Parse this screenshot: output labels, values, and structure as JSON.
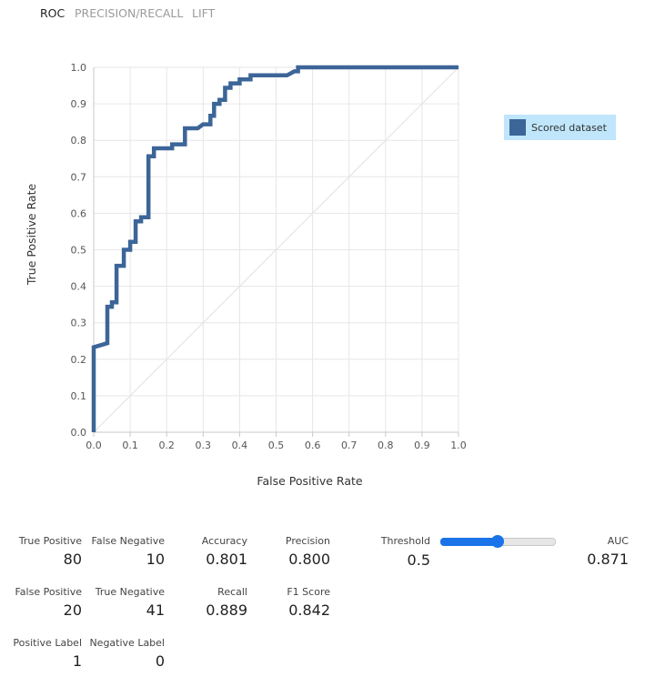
{
  "tabs": [
    {
      "label": "ROC",
      "active": true
    },
    {
      "label": "PRECISION/RECALL",
      "active": false
    },
    {
      "label": "LIFT",
      "active": false
    }
  ],
  "colors": {
    "series": "#3c6598",
    "legend_bg": "#bfe6fb",
    "grid": "#e6e6e6",
    "diagonal": "#e6e6e6",
    "slider": "#1a73e8"
  },
  "chart_data": {
    "type": "line",
    "xlabel": "False Positive Rate",
    "ylabel": "True Positive Rate",
    "xlim": [
      0,
      1
    ],
    "ylim": [
      0,
      1
    ],
    "xticks": [
      "0.0",
      "0.1",
      "0.2",
      "0.3",
      "0.4",
      "0.5",
      "0.6",
      "0.7",
      "0.8",
      "0.9",
      "1.0"
    ],
    "yticks": [
      "0.0",
      "0.1",
      "0.2",
      "0.3",
      "0.4",
      "0.5",
      "0.6",
      "0.7",
      "0.8",
      "0.9",
      "1.0"
    ],
    "grid": true,
    "legend_position": "right",
    "diagonal_reference": true,
    "series": [
      {
        "name": "Scored dataset",
        "color": "#3c6598",
        "points": [
          [
            0.0,
            0.0
          ],
          [
            0.0,
            0.233
          ],
          [
            0.0375,
            0.244
          ],
          [
            0.0375,
            0.344
          ],
          [
            0.05,
            0.344
          ],
          [
            0.05,
            0.356
          ],
          [
            0.0625,
            0.356
          ],
          [
            0.0625,
            0.456
          ],
          [
            0.0825,
            0.456
          ],
          [
            0.0825,
            0.5
          ],
          [
            0.1,
            0.5
          ],
          [
            0.1,
            0.522
          ],
          [
            0.115,
            0.522
          ],
          [
            0.115,
            0.578
          ],
          [
            0.13,
            0.578
          ],
          [
            0.13,
            0.589
          ],
          [
            0.15,
            0.589
          ],
          [
            0.15,
            0.756
          ],
          [
            0.165,
            0.756
          ],
          [
            0.165,
            0.778
          ],
          [
            0.215,
            0.778
          ],
          [
            0.215,
            0.789
          ],
          [
            0.25,
            0.789
          ],
          [
            0.25,
            0.833
          ],
          [
            0.285,
            0.833
          ],
          [
            0.3,
            0.844
          ],
          [
            0.32,
            0.844
          ],
          [
            0.32,
            0.867
          ],
          [
            0.33,
            0.867
          ],
          [
            0.33,
            0.9
          ],
          [
            0.345,
            0.9
          ],
          [
            0.345,
            0.911
          ],
          [
            0.36,
            0.911
          ],
          [
            0.36,
            0.944
          ],
          [
            0.375,
            0.944
          ],
          [
            0.375,
            0.956
          ],
          [
            0.4,
            0.956
          ],
          [
            0.4,
            0.967
          ],
          [
            0.43,
            0.967
          ],
          [
            0.43,
            0.978
          ],
          [
            0.53,
            0.978
          ],
          [
            0.55,
            0.989
          ],
          [
            0.56,
            0.989
          ],
          [
            0.56,
            1.0
          ],
          [
            1.0,
            1.0
          ]
        ]
      }
    ]
  },
  "metrics": {
    "true_positive": {
      "label": "True Positive",
      "value": "80"
    },
    "false_negative": {
      "label": "False Negative",
      "value": "10"
    },
    "accuracy": {
      "label": "Accuracy",
      "value": "0.801"
    },
    "precision": {
      "label": "Precision",
      "value": "0.800"
    },
    "false_positive": {
      "label": "False Positive",
      "value": "20"
    },
    "true_negative": {
      "label": "True Negative",
      "value": "41"
    },
    "recall": {
      "label": "Recall",
      "value": "0.889"
    },
    "f1_score": {
      "label": "F1 Score",
      "value": "0.842"
    },
    "positive_label": {
      "label": "Positive Label",
      "value": "1"
    },
    "negative_label": {
      "label": "Negative Label",
      "value": "0"
    },
    "threshold": {
      "label": "Threshold",
      "value": "0.5",
      "slider_fraction": 0.5
    },
    "auc": {
      "label": "AUC",
      "value": "0.871"
    }
  }
}
